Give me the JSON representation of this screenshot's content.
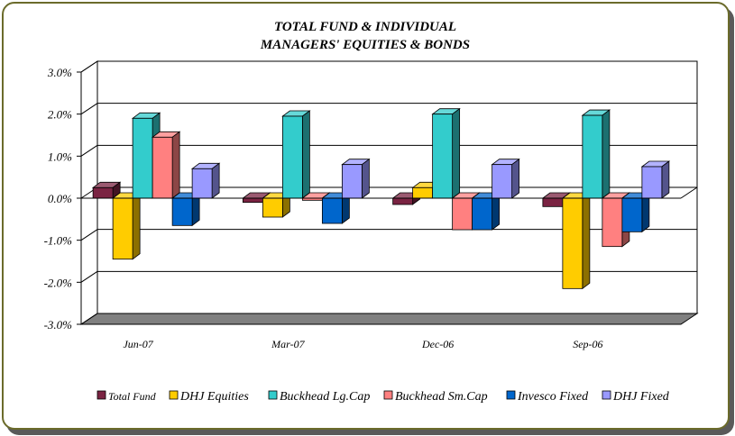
{
  "chart_data": {
    "type": "bar",
    "title_lines": [
      "TOTAL FUND  & INDIVIDUAL",
      "MANAGERS' EQUITIES & BONDS"
    ],
    "categories": [
      "Jun-07",
      "Mar-07",
      "Dec-06",
      "Sep-06"
    ],
    "y_ticks": [
      "3.0%",
      "2.0%",
      "1.0%",
      "0.0%",
      "-1.0%",
      "-2.0%",
      "-3.0%"
    ],
    "ylim": [
      -3.0,
      3.0
    ],
    "grid": true,
    "legend_position": "bottom",
    "series": [
      {
        "name": "Total Fund",
        "color": "#7a2342",
        "values": [
          0.25,
          -0.1,
          -0.15,
          -0.2
        ]
      },
      {
        "name": "DHJ Equities",
        "color": "#ffcc00",
        "values": [
          -1.45,
          -0.45,
          0.25,
          -2.15
        ]
      },
      {
        "name": "Buckhead Lg.Cap",
        "color": "#33cccc",
        "values": [
          1.9,
          1.95,
          2.0,
          1.97
        ]
      },
      {
        "name": "Buckhead Sm.Cap",
        "color": "#ff8080",
        "values": [
          1.45,
          -0.05,
          -0.75,
          -1.15
        ]
      },
      {
        "name": "Invesco Fixed",
        "color": "#0066cc",
        "values": [
          -0.65,
          -0.6,
          -0.75,
          -0.8
        ]
      },
      {
        "name": "DHJ Fixed",
        "color": "#9999ff",
        "values": [
          0.7,
          0.8,
          0.8,
          0.75
        ]
      }
    ]
  }
}
